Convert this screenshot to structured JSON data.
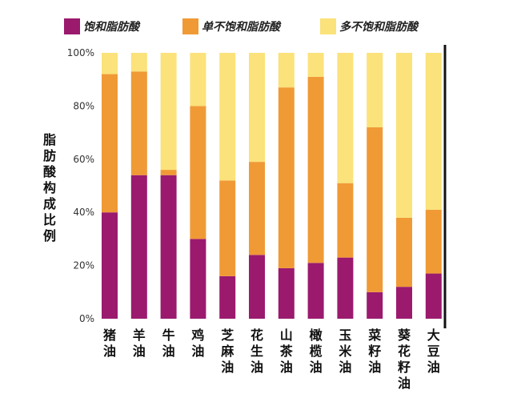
{
  "chart_data": {
    "type": "bar",
    "stacked": true,
    "percent": true,
    "ylabel": "脂肪酸构成比例",
    "xlabel": "",
    "ylim": [
      0,
      100
    ],
    "yticks": [
      "0%",
      "20%",
      "40%",
      "60%",
      "80%",
      "100%"
    ],
    "categories": [
      "猪油",
      "羊油",
      "牛油",
      "鸡油",
      "芝麻油",
      "花生油",
      "山茶油",
      "橄榄油",
      "玉米油",
      "菜籽油",
      "葵花籽油",
      "大豆油"
    ],
    "series": [
      {
        "name": "饱和脂肪酸",
        "color": "#9b1a6e",
        "values": [
          40,
          54,
          54,
          30,
          16,
          24,
          19,
          21,
          23,
          10,
          12,
          17
        ]
      },
      {
        "name": "单不饱和脂肪酸",
        "color": "#f09a36",
        "values": [
          52,
          39,
          2,
          50,
          36,
          35,
          68,
          70,
          28,
          62,
          26,
          24
        ]
      },
      {
        "name": "多不饱和脂肪酸",
        "color": "#fbe27a",
        "values": [
          8,
          7,
          44,
          20,
          48,
          41,
          13,
          9,
          49,
          28,
          62,
          59
        ]
      }
    ],
    "legend_position": "top",
    "grid": false
  }
}
